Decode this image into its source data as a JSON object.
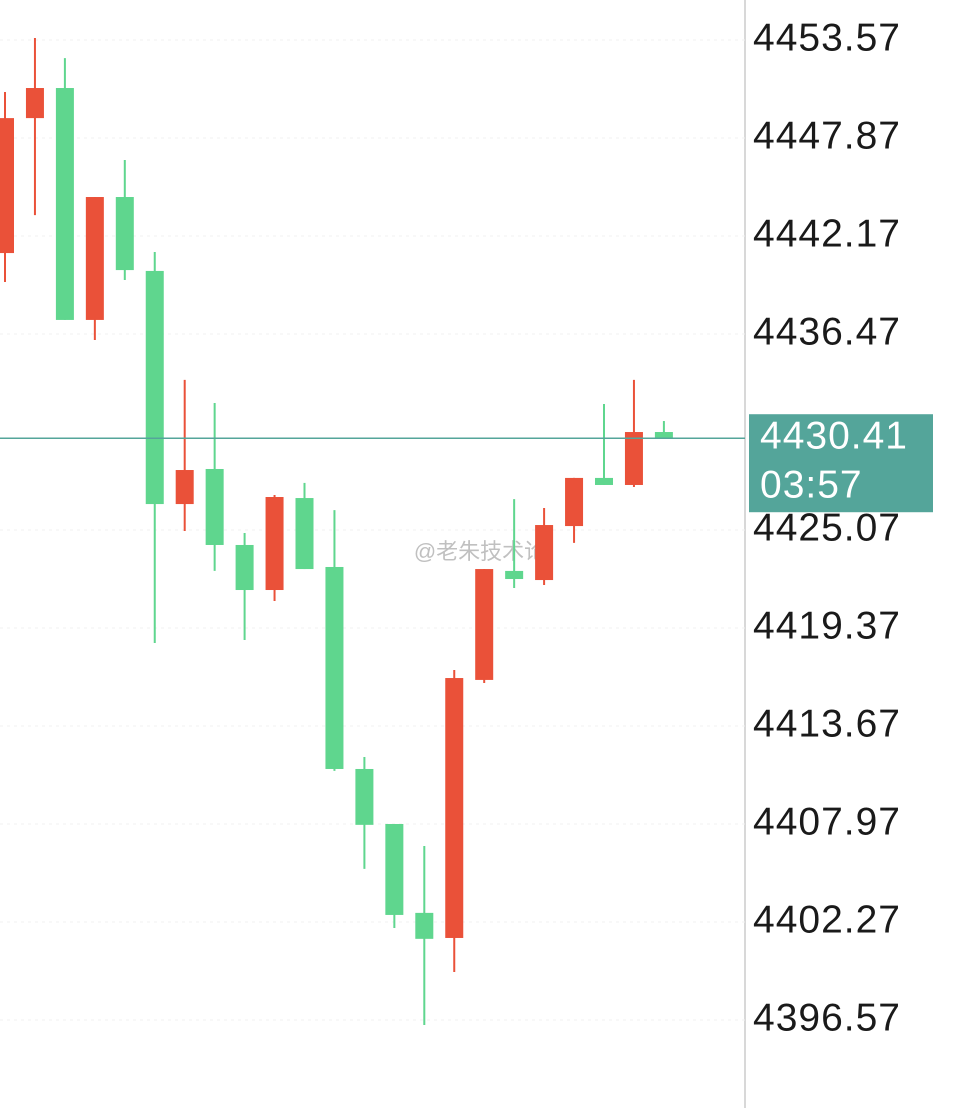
{
  "chart_data": {
    "type": "candlestick",
    "categories": [
      null,
      null,
      null,
      null,
      null,
      null,
      null,
      null,
      null,
      null,
      null,
      null,
      null,
      null,
      null,
      null,
      null,
      null,
      null,
      null,
      null,
      null,
      null
    ],
    "open": [
      4441.18,
      4449.03,
      4450.78,
      4437.29,
      4444.44,
      4440.14,
      4426.58,
      4428.62,
      4424.2,
      4421.58,
      4426.93,
      4422.92,
      4411.17,
      4407.97,
      4402.8,
      4401.34,
      4416.35,
      4422.69,
      4422.16,
      4425.3,
      4428.1,
      4427.69,
      4430.77
    ],
    "high": [
      4450.55,
      4453.69,
      4452.52,
      4444.44,
      4446.59,
      4441.24,
      4433.8,
      4432.46,
      4424.9,
      4427.11,
      4427.81,
      4426.23,
      4411.87,
      4407.97,
      4406.69,
      4416.93,
      4422.8,
      4426.87,
      4426.35,
      4428.1,
      4432.4,
      4433.8,
      4431.41
    ],
    "low": [
      4439.5,
      4443.39,
      4437.29,
      4436.12,
      4439.61,
      4418.5,
      4425.01,
      4422.69,
      4418.67,
      4420.94,
      4422.8,
      4411.06,
      4405.36,
      4401.92,
      4396.28,
      4399.36,
      4416.17,
      4421.7,
      4421.87,
      4424.32,
      4427.69,
      4427.57,
      4430.41
    ],
    "close": [
      4449.03,
      4450.78,
      4437.29,
      4444.44,
      4440.19,
      4426.58,
      4428.56,
      4424.2,
      4421.58,
      4426.99,
      4422.8,
      4411.17,
      4407.92,
      4402.68,
      4401.29,
      4416.46,
      4422.8,
      4422.22,
      4425.36,
      4428.1,
      4427.69,
      4430.77,
      4430.41
    ],
    "up_color": "#ea5139",
    "down_color": "#5fd68e",
    "ylim": [
      4391.45,
      4455.9
    ],
    "yticks": [
      4453.57,
      4447.87,
      4442.17,
      4436.47,
      4425.07,
      4419.37,
      4413.67,
      4407.97,
      4402.27,
      4396.57
    ],
    "grid": true,
    "last_price": 4430.41,
    "last_price_color": "#54a59a",
    "countdown": "03:57",
    "watermark": "@老朱技术论"
  }
}
